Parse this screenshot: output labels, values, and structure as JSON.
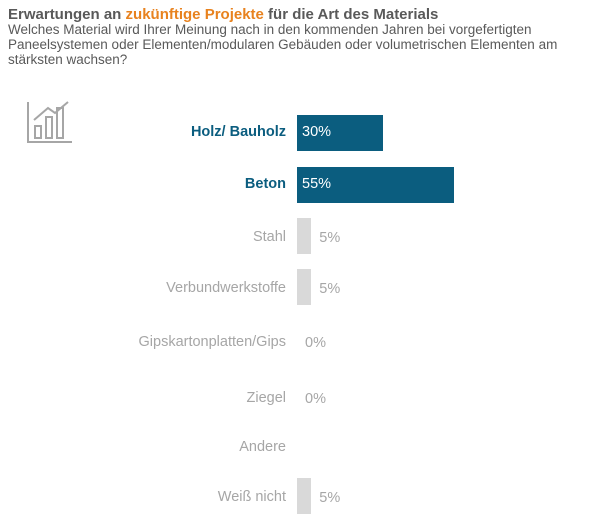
{
  "header": {
    "title_pre": "Erwartungen an ",
    "title_highlight": "zukünftige Projekte",
    "title_post": " für die Art des Materials",
    "subtitle": "Welches Material wird Ihrer Meinung  nach in den kommenden Jahren bei vorgefertigten Paneelsystemen oder Elementen/modularen Gebäuden  oder volumetrischen Elementen am stärksten wachsen?"
  },
  "icon": "bar-chart-icon",
  "colors": {
    "highlight_bar": "#0B5D7F",
    "muted_bar": "#D9D9D9",
    "title_accent": "#E8821E"
  },
  "chart_data": {
    "type": "bar",
    "orientation": "horizontal",
    "categories": [
      "Holz/ Bauholz",
      "Beton",
      "Stahl",
      "Verbundwerkstoffe",
      "Gipskartonplatten/Gips",
      "Ziegel",
      "Andere",
      "Weiß  nicht"
    ],
    "values": [
      30,
      55,
      5,
      5,
      0,
      0,
      null,
      5
    ],
    "labels": [
      "30%",
      "55%",
      "5%",
      "5%",
      "0%",
      "0%",
      "",
      "5%"
    ],
    "highlighted": [
      true,
      true,
      false,
      false,
      false,
      false,
      false,
      false
    ],
    "xlim": [
      0,
      100
    ]
  }
}
